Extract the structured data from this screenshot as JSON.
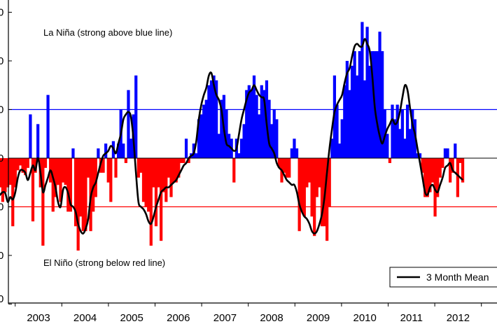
{
  "chart_data": {
    "type": "bar",
    "title": "",
    "xlabel": "",
    "ylabel": "",
    "x_tick_labels": [
      "2003",
      "2004",
      "2005",
      "2006",
      "2007",
      "2008",
      "2009",
      "2010",
      "2011",
      "2012",
      "20"
    ],
    "y_tick_labels": [
      "0",
      "0",
      "0",
      "0",
      "0",
      "0",
      "0"
    ],
    "ylim": [
      -3,
      3
    ],
    "reference_lines": [
      {
        "y": 1,
        "color": "#0000ff"
      },
      {
        "y": -1,
        "color": "#ff0000"
      }
    ],
    "annotations": {
      "la_nina": "La Niña (strong above blue line)",
      "el_nino": "El Niño (strong below red line)"
    },
    "legend": {
      "label": "3 Month Mean",
      "position": "bottom-right"
    },
    "colors": {
      "positive": "#0000ff",
      "negative": "#ff0000",
      "mean_line": "#000000",
      "axis": "#000000"
    },
    "x_start": 2002.625,
    "x_end": 2012.6,
    "monthly": [
      -0.8,
      -0.6,
      -0.9,
      -0.7,
      -0.6,
      -0.55,
      -1.4,
      -0.6,
      -0.25,
      -0.15,
      -0.3,
      -0.35,
      -0.2,
      0.9,
      -1.3,
      -0.3,
      0.7,
      -0.6,
      -1.8,
      -0.2,
      1.3,
      -0.5,
      -1.1,
      -0.8,
      -0.55,
      -0.9,
      -0.5,
      -0.55,
      -1.1,
      -1.1,
      0.2,
      -1.4,
      -1.9,
      -1.2,
      -1.5,
      -1.5,
      -0.4,
      -1.5,
      -1.1,
      -0.8,
      0.2,
      -0.3,
      -0.3,
      0.3,
      -0.5,
      -0.9,
      0.35,
      -0.4,
      0.3,
      1.0,
      0.3,
      -0.1,
      1.4,
      0.4,
      0.9,
      1.7,
      -0.4,
      -0.3,
      -0.9,
      -1.0,
      -1.1,
      -1.8,
      -0.6,
      -1.4,
      -0.6,
      -1.7,
      -0.7,
      -0.9,
      -0.4,
      -0.8,
      -0.5,
      -0.5,
      -0.4,
      -0.1,
      -0.1,
      0.4,
      -0.1,
      0.1,
      0.3,
      0.1,
      0.8,
      0.9,
      1.1,
      1.2,
      1.5,
      1.6,
      1.7,
      1.6,
      0.5,
      1.2,
      1.3,
      1.0,
      0.5,
      0.4,
      -0.5,
      0.4,
      0.1,
      0.4,
      0.7,
      1.4,
      1.5,
      1.4,
      1.7,
      1.3,
      0.9,
      1.5,
      1.4,
      1.6,
      1.2,
      0.7,
      1.0,
      0.8,
      -0.2,
      -0.5,
      -0.3,
      -0.4,
      -0.4,
      0.2,
      0.4,
      0.2,
      -1.5,
      -1.1,
      -1.2,
      -0.6,
      -0.5,
      -1.2,
      -1.6,
      -0.8,
      -0.6,
      -1.4,
      -1.4,
      -1.7,
      -1.0,
      0.4,
      1.7,
      1.1,
      0.3,
      0.8,
      1.5,
      2.0,
      1.4,
      1.9,
      2.2,
      1.7,
      2.2,
      2.8,
      1.6,
      2.7,
      1.9,
      2.2,
      2.2,
      2.2,
      2.6,
      2.2,
      1.0,
      0.5,
      -0.1,
      1.1,
      0.8,
      1.1,
      0.6,
      1.0,
      0.4,
      1.1,
      0.6,
      1.0,
      0.8,
      0.1,
      0.1,
      -0.3,
      -0.8,
      -0.8,
      -0.7,
      -0.5,
      -1.2,
      -0.8,
      -0.4,
      -0.2,
      0.2,
      0.2,
      -0.5,
      -0.3,
      0.3,
      -0.8,
      -0.1,
      -0.5
    ],
    "mean_3mo": [
      -0.8,
      -0.75,
      -0.7,
      -0.72,
      -0.9,
      -0.8,
      -0.85,
      -0.7,
      -0.4,
      -0.25,
      -0.25,
      -0.3,
      -0.45,
      -0.3,
      -0.15,
      -0.25,
      0.0,
      -0.3,
      -0.7,
      -0.55,
      -0.4,
      -0.25,
      -0.4,
      -0.6,
      -0.9,
      -1.0,
      -0.65,
      -0.6,
      -0.72,
      -0.95,
      -1.0,
      -1.1,
      -1.35,
      -1.5,
      -1.55,
      -1.45,
      -1.25,
      -0.8,
      -0.6,
      -0.5,
      -0.3,
      -0.1,
      0.05,
      0.1,
      0.15,
      0.25,
      0.2,
      0.1,
      0.3,
      0.5,
      0.8,
      0.9,
      0.95,
      0.85,
      0.4,
      -0.3,
      -0.9,
      -1.0,
      -1.05,
      -1.15,
      -1.3,
      -1.35,
      -1.2,
      -1.0,
      -0.85,
      -0.7,
      -0.65,
      -0.6,
      -0.6,
      -0.55,
      -0.5,
      -0.45,
      -0.35,
      -0.25,
      -0.15,
      -0.1,
      0.0,
      0.05,
      0.1,
      0.35,
      0.8,
      1.1,
      1.3,
      1.45,
      1.7,
      1.75,
      1.5,
      1.3,
      1.2,
      1.0,
      0.6,
      0.3,
      0.25,
      0.2,
      0.15,
      0.2,
      0.5,
      0.8,
      1.0,
      1.2,
      1.35,
      1.4,
      1.5,
      1.4,
      1.3,
      1.25,
      1.2,
      0.7,
      0.3,
      0.2,
      0.1,
      -0.1,
      -0.2,
      -0.25,
      -0.35,
      -0.45,
      -0.5,
      -0.55,
      -0.55,
      -0.7,
      -0.95,
      -1.1,
      -1.2,
      -1.25,
      -1.35,
      -1.5,
      -1.55,
      -1.5,
      -1.35,
      -1.15,
      -0.8,
      -0.3,
      0.2,
      0.6,
      0.95,
      1.1,
      1.2,
      1.3,
      1.55,
      1.75,
      1.85,
      2.1,
      2.3,
      2.35,
      2.3,
      2.3,
      2.45,
      2.35,
      2.2,
      1.7,
      1.05,
      0.7,
      0.45,
      0.3,
      0.45,
      0.6,
      0.7,
      0.8,
      0.7,
      0.75,
      0.95,
      1.25,
      1.5,
      1.4,
      1.05,
      0.7,
      0.5,
      0.2,
      -0.1,
      -0.4,
      -0.7,
      -0.75,
      -0.6,
      -0.55,
      -0.65,
      -0.7,
      -0.55,
      -0.4,
      -0.2,
      -0.15,
      -0.1,
      -0.25,
      -0.3,
      -0.35,
      -0.4,
      -0.45
    ]
  }
}
